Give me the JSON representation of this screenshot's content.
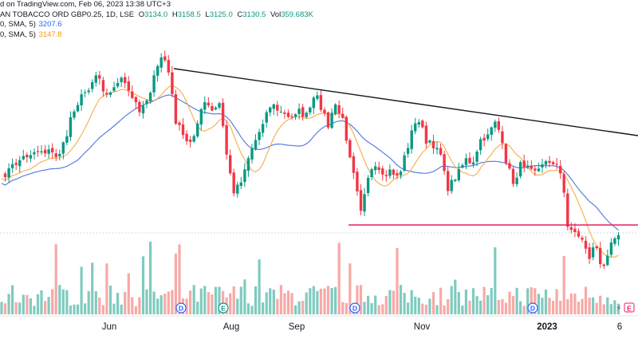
{
  "header": {
    "published": "d on TradingView.com, Feb 06, 2023 13:38 UTC+3",
    "symbol": "AN TOBACCO ORD GBP0.25, 1D, LSE",
    "open_label": "O",
    "open": "3134.0",
    "high_label": "H",
    "high": "3158.5",
    "low_label": "L",
    "low": "3125.0",
    "close_label": "C",
    "close": "3130.5",
    "vol_label": "Vol",
    "volume": "359.683K"
  },
  "indicators": [
    {
      "label": "0, SMA, 5)",
      "value": "3207.6",
      "color": "#2962ff"
    },
    {
      "label": "0, SMA, 5)",
      "value": "3147.8",
      "color": "#ff9800"
    }
  ],
  "chart_data": {
    "type": "candlestick",
    "x_tick_labels": [
      "Jun",
      "Aug",
      "Sep",
      "Nov",
      "2023",
      "6"
    ],
    "event_markers": [
      {
        "label": "D",
        "color": "#2962ff"
      },
      {
        "label": "E",
        "color": "#089981"
      },
      {
        "label": "D",
        "color": "#2962ff"
      },
      {
        "label": "D",
        "color": "#2962ff"
      },
      {
        "label": "E",
        "color": "#e91e63"
      }
    ],
    "colors": {
      "up": "#089981",
      "down": "#f23645",
      "vol_up": "#7fcbbf",
      "vol_down": "#f7a9a7",
      "sma_slow": "#5b7fdf",
      "sma_fast": "#f5b357",
      "trendline": "#131722",
      "support": "#e91e63"
    },
    "annotations": [
      "descending trendline",
      "horizontal support line"
    ]
  }
}
